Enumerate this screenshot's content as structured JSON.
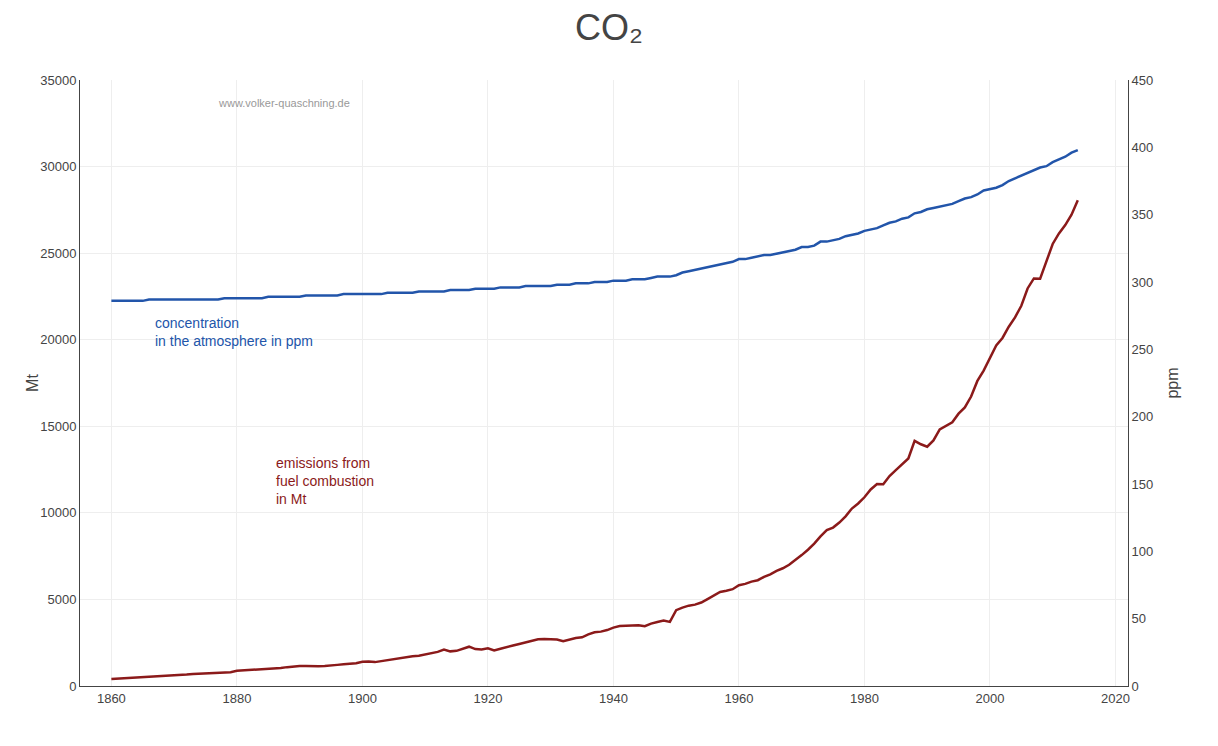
{
  "chart_data": {
    "type": "line",
    "title": "CO₂",
    "ylabel": "Mt",
    "y2label": "ppm",
    "annotations": [
      {
        "text": "www.volker-quaschning.de",
        "color": "#999999"
      },
      {
        "text": "concentration\nin the atmosphere in ppm",
        "color": "#2255aa"
      },
      {
        "text": "emissions from\nfuel combustion\nin Mt",
        "color": "#8b1a1a"
      }
    ],
    "grid": true,
    "xlim": [
      1855,
      2022
    ],
    "xticks": [
      1860,
      1880,
      1900,
      1920,
      1940,
      1960,
      1980,
      2000,
      2020
    ],
    "ylim": [
      0,
      35000
    ],
    "yticks": [
      0,
      5000,
      10000,
      15000,
      20000,
      25000,
      30000,
      35000
    ],
    "y2lim": [
      0,
      450
    ],
    "y2ticks": [
      0,
      50,
      100,
      150,
      200,
      250,
      300,
      350,
      400,
      450
    ],
    "x": [
      1860,
      1861,
      1862,
      1863,
      1864,
      1865,
      1866,
      1867,
      1868,
      1869,
      1870,
      1871,
      1872,
      1873,
      1874,
      1875,
      1876,
      1877,
      1878,
      1879,
      1880,
      1881,
      1882,
      1883,
      1884,
      1885,
      1886,
      1887,
      1888,
      1889,
      1890,
      1891,
      1892,
      1893,
      1894,
      1895,
      1896,
      1897,
      1898,
      1899,
      1900,
      1901,
      1902,
      1903,
      1904,
      1905,
      1906,
      1907,
      1908,
      1909,
      1910,
      1911,
      1912,
      1913,
      1914,
      1915,
      1916,
      1917,
      1918,
      1919,
      1920,
      1921,
      1922,
      1923,
      1924,
      1925,
      1926,
      1927,
      1928,
      1929,
      1930,
      1931,
      1932,
      1933,
      1934,
      1935,
      1936,
      1937,
      1938,
      1939,
      1940,
      1941,
      1942,
      1943,
      1944,
      1945,
      1946,
      1947,
      1948,
      1949,
      1950,
      1951,
      1952,
      1953,
      1954,
      1955,
      1956,
      1957,
      1958,
      1959,
      1960,
      1961,
      1962,
      1963,
      1964,
      1965,
      1966,
      1967,
      1968,
      1969,
      1970,
      1971,
      1972,
      1973,
      1974,
      1975,
      1976,
      1977,
      1978,
      1979,
      1980,
      1981,
      1982,
      1983,
      1984,
      1985,
      1986,
      1987,
      1988,
      1989,
      1990,
      1991,
      1992,
      1993,
      1994,
      1995,
      1996,
      1997,
      1998,
      1999,
      2000,
      2001,
      2002,
      2003,
      2004,
      2005,
      2006,
      2007,
      2008,
      2009,
      2010,
      2011,
      2012,
      2013,
      2014
    ],
    "series": [
      {
        "color": "#2255aa",
        "axis": "y2",
        "values": [
          286,
          286,
          286,
          286,
          286,
          286,
          287,
          287,
          287,
          287,
          287,
          287,
          287,
          287,
          287,
          287,
          287,
          287,
          288,
          288,
          288,
          288,
          288,
          288,
          288,
          289,
          289,
          289,
          289,
          289,
          289,
          290,
          290,
          290,
          290,
          290,
          290,
          291,
          291,
          291,
          291,
          291,
          291,
          291,
          292,
          292,
          292,
          292,
          292,
          293,
          293,
          293,
          293,
          293,
          294,
          294,
          294,
          294,
          295,
          295,
          295,
          295,
          296,
          296,
          296,
          296,
          297,
          297,
          297,
          297,
          297,
          298,
          298,
          298,
          299,
          299,
          299,
          300,
          300,
          300,
          301,
          301,
          301,
          302,
          302,
          302,
          303,
          304,
          304,
          304,
          305,
          307,
          308,
          309,
          310,
          311,
          312,
          313,
          314,
          315,
          317,
          317,
          318,
          319,
          320,
          320,
          321,
          322,
          323,
          324,
          326,
          326,
          327,
          330,
          330,
          331,
          332,
          334,
          335,
          336,
          338,
          339,
          340,
          342,
          344,
          345,
          347,
          348,
          351,
          352,
          354,
          355,
          356,
          357,
          358,
          360,
          362,
          363,
          365,
          368,
          369,
          370,
          372,
          375,
          377,
          379,
          381,
          383,
          385,
          386,
          389,
          391,
          393,
          396,
          398
        ]
      },
      {
        "color": "#8b1a1a",
        "values": [
          400,
          420,
          440,
          450,
          460,
          490,
          520,
          540,
          560,
          580,
          600,
          620,
          660,
          690,
          710,
          740,
          760,
          790,
          800,
          800,
          880,
          900,
          930,
          950,
          980,
          1000,
          1010,
          1040,
          1090,
          1130,
          1150,
          1160,
          1130,
          1140,
          1150,
          1170,
          1220,
          1260,
          1280,
          1320,
          1400,
          1420,
          1380,
          1440,
          1480,
          1530,
          1590,
          1680,
          1720,
          1750,
          1820,
          1900,
          1970,
          2100,
          2000,
          2030,
          2170,
          2270,
          2130,
          2110,
          2180,
          2050,
          2150,
          2260,
          2340,
          2430,
          2530,
          2620,
          2700,
          2710,
          2700,
          2680,
          2580,
          2680,
          2770,
          2810,
          2980,
          3100,
          3140,
          3230,
          3370,
          3460,
          3490,
          3510,
          3510,
          3450,
          3600,
          3700,
          3780,
          3700,
          4380,
          4530,
          4640,
          4700,
          4820,
          5020,
          5220,
          5430,
          5500,
          5590,
          5820,
          5900,
          6030,
          6110,
          6300,
          6450,
          6650,
          6800,
          7000,
          7260,
          7560,
          7870,
          8220,
          8640,
          9000,
          9150,
          9440,
          9800,
          10250,
          10540,
          10900,
          11350,
          11670,
          11650,
          12130,
          12470,
          12780,
          13140,
          14160,
          13960,
          13820,
          14180,
          14820,
          15030,
          15230,
          15730,
          16090,
          16720,
          17620,
          18220,
          18900,
          19670,
          20100,
          20750,
          21290,
          21960,
          22960,
          23540,
          23520,
          24490,
          25530,
          26140,
          26620,
          27220,
          28050
        ]
      }
    ]
  }
}
